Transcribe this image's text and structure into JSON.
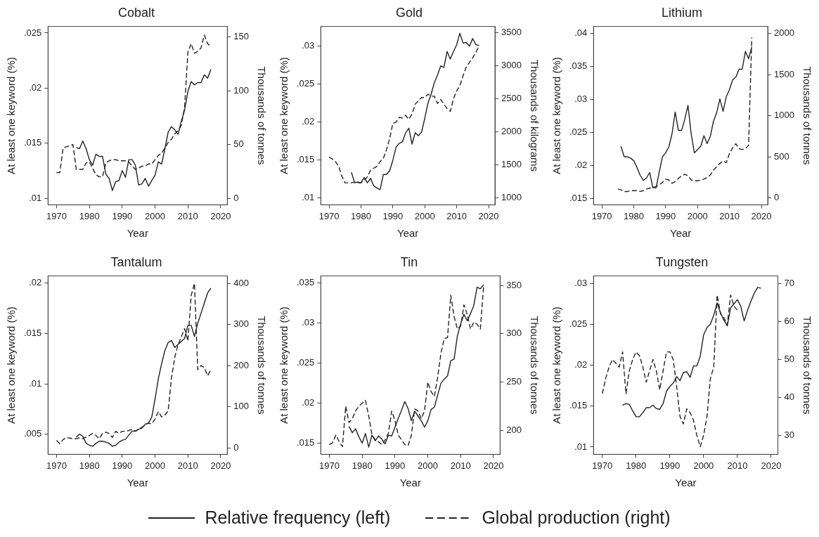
{
  "chart_data": [
    {
      "type": "line",
      "title": "Cobalt",
      "xlabel": "Year",
      "ylabel": "At least one keyword (%)",
      "y2label": "Thousands of tonnes",
      "xlim": [
        1967.4,
        2022
      ],
      "xticks": [
        1970,
        1980,
        1990,
        2000,
        2010,
        2020
      ],
      "ylim": [
        0.0094,
        0.0256
      ],
      "yticks": [
        {
          "value": 0.01,
          "label": ".01"
        },
        {
          "value": 0.015,
          "label": ".015"
        },
        {
          "value": 0.02,
          "label": ".02"
        },
        {
          "value": 0.025,
          "label": ".025"
        }
      ],
      "y2lim": [
        -6,
        160
      ],
      "y2ticks": [
        0,
        50,
        100,
        150
      ],
      "grid": false,
      "marker": "none",
      "legend": "bottom",
      "series": [
        {
          "name": "Relative frequency (left)",
          "color": "#222222",
          "line_style": "solid",
          "x": [
            1976,
            1977,
            1978,
            1979,
            1980,
            1981,
            1982,
            1983,
            1984,
            1985,
            1986,
            1987,
            1988,
            1989,
            1990,
            1991,
            1992,
            1993,
            1994,
            1995,
            1996,
            1997,
            1998,
            1999,
            2000,
            2001,
            2002,
            2003,
            2004,
            2005,
            2006,
            2007,
            2008,
            2009,
            2010,
            2011,
            2012,
            2013,
            2014,
            2015,
            2016,
            2017
          ],
          "values": [
            0.0146,
            0.0145,
            0.0152,
            0.0145,
            0.0135,
            0.013,
            0.014,
            0.0138,
            0.0138,
            0.0122,
            0.0118,
            0.0107,
            0.0115,
            0.0116,
            0.0125,
            0.0119,
            0.0135,
            0.0135,
            0.013,
            0.0112,
            0.0113,
            0.0118,
            0.0111,
            0.0116,
            0.0121,
            0.0133,
            0.0131,
            0.0145,
            0.016,
            0.0165,
            0.0162,
            0.0158,
            0.017,
            0.018,
            0.0197,
            0.0206,
            0.0203,
            0.0205,
            0.0205,
            0.0212,
            0.0209,
            0.0217
          ]
        },
        {
          "name": "Global production (right)",
          "color": "#222222",
          "line_style": "dashed",
          "axis": "y2",
          "x": [
            1970,
            1971,
            1972,
            1973,
            1974,
            1975,
            1976,
            1977,
            1978,
            1979,
            1980,
            1981,
            1982,
            1983,
            1984,
            1985,
            1986,
            1987,
            1988,
            1989,
            1990,
            1991,
            1992,
            1993,
            1994,
            1995,
            1996,
            1997,
            1998,
            1999,
            2000,
            2001,
            2002,
            2003,
            2004,
            2005,
            2006,
            2007,
            2008,
            2009,
            2010,
            2011,
            2012,
            2013,
            2014,
            2015,
            2016,
            2017
          ],
          "values": [
            24,
            24,
            47,
            48,
            49,
            50,
            27,
            27,
            27,
            33,
            34,
            28,
            22,
            20,
            20,
            33,
            35,
            36,
            36,
            35,
            35,
            35,
            34,
            30,
            27,
            28,
            30,
            30,
            32,
            32,
            36,
            40,
            42,
            47,
            52,
            55,
            60,
            63,
            68,
            85,
            136,
            144,
            135,
            137,
            140,
            152,
            144,
            141
          ]
        }
      ]
    },
    {
      "type": "line",
      "title": "Gold",
      "xlabel": "Year",
      "ylabel": "At least one keyword (%)",
      "y2label": "Thousands of kilograms",
      "xlim": [
        1967.4,
        2022
      ],
      "xticks": [
        1970,
        1980,
        1990,
        2000,
        2010,
        2020
      ],
      "ylim": [
        0.0091,
        0.0326
      ],
      "yticks": [
        {
          "value": 0.01,
          "label": ".01"
        },
        {
          "value": 0.015,
          "label": ".015"
        },
        {
          "value": 0.02,
          "label": ".02"
        },
        {
          "value": 0.025,
          "label": ".025"
        },
        {
          "value": 0.03,
          "label": ".03"
        }
      ],
      "y2lim": [
        897,
        3595
      ],
      "y2ticks": [
        1000,
        1500,
        2000,
        2500,
        3000,
        3500
      ],
      "grid": false,
      "marker": "none",
      "series": [
        {
          "color": "#222222",
          "line_style": "solid",
          "x": [
            1977,
            1978,
            1979,
            1980,
            1981,
            1982,
            1983,
            1984,
            1985,
            1986,
            1987,
            1988,
            1989,
            1990,
            1991,
            1992,
            1993,
            1994,
            1995,
            1996,
            1997,
            1998,
            1999,
            2000,
            2001,
            2002,
            2003,
            2004,
            2005,
            2006,
            2007,
            2008,
            2009,
            2010,
            2011,
            2012,
            2013,
            2014,
            2015,
            2016,
            2017
          ],
          "values": [
            0.0134,
            0.012,
            0.0121,
            0.012,
            0.0127,
            0.012,
            0.0126,
            0.0116,
            0.0113,
            0.0111,
            0.0131,
            0.0131,
            0.0136,
            0.015,
            0.0167,
            0.0172,
            0.0174,
            0.0186,
            0.0192,
            0.0171,
            0.0186,
            0.0182,
            0.0187,
            0.0205,
            0.0225,
            0.0237,
            0.0252,
            0.0262,
            0.0274,
            0.0272,
            0.0293,
            0.0283,
            0.0293,
            0.0302,
            0.0317,
            0.0304,
            0.0305,
            0.03,
            0.031,
            0.0302,
            0.0301
          ]
        },
        {
          "color": "#222222",
          "line_style": "dashed",
          "axis": "y2",
          "x": [
            1970,
            1971,
            1972,
            1973,
            1974,
            1975,
            1976,
            1977,
            1978,
            1979,
            1980,
            1981,
            1982,
            1983,
            1984,
            1985,
            1986,
            1987,
            1988,
            1989,
            1990,
            1991,
            1992,
            1993,
            1994,
            1995,
            1996,
            1997,
            1998,
            1999,
            2000,
            2001,
            2002,
            2003,
            2004,
            2005,
            2006,
            2007,
            2008,
            2009,
            2010,
            2011,
            2012,
            2013,
            2014,
            2015,
            2016,
            2017
          ],
          "values": [
            1620,
            1590,
            1550,
            1480,
            1330,
            1230,
            1230,
            1230,
            1240,
            1230,
            1230,
            1270,
            1320,
            1420,
            1450,
            1480,
            1550,
            1600,
            1730,
            1900,
            2130,
            2150,
            2220,
            2210,
            2250,
            2190,
            2270,
            2420,
            2470,
            2520,
            2520,
            2570,
            2540,
            2540,
            2430,
            2490,
            2420,
            2350,
            2310,
            2500,
            2620,
            2700,
            2850,
            2980,
            3050,
            3120,
            3200,
            3300
          ]
        }
      ]
    },
    {
      "type": "line",
      "title": "Lithium",
      "xlabel": "Year",
      "ylabel": "At least one keyword (%)",
      "y2label": "Thousands of tonnes",
      "xlim": [
        1967.4,
        2022
      ],
      "xticks": [
        1970,
        1980,
        1990,
        2000,
        2010,
        2020
      ],
      "ylim": [
        0.014,
        0.0411
      ],
      "yticks": [
        {
          "value": 0.015,
          "label": ".015"
        },
        {
          "value": 0.02,
          "label": ".02"
        },
        {
          "value": 0.025,
          "label": ".025"
        },
        {
          "value": 0.03,
          "label": ".03"
        },
        {
          "value": 0.035,
          "label": ".035"
        },
        {
          "value": 0.04,
          "label": ".04"
        }
      ],
      "y2lim": [
        -82,
        2085
      ],
      "y2ticks": [
        0,
        500,
        1000,
        1500,
        2000
      ],
      "grid": false,
      "marker": "none",
      "series": [
        {
          "color": "#222222",
          "line_style": "solid",
          "x": [
            1976,
            1977,
            1978,
            1979,
            1980,
            1981,
            1982,
            1983,
            1984,
            1985,
            1986,
            1987,
            1988,
            1989,
            1990,
            1991,
            1992,
            1993,
            1994,
            1995,
            1996,
            1997,
            1998,
            1999,
            2000,
            2001,
            2002,
            2003,
            2004,
            2005,
            2006,
            2007,
            2008,
            2009,
            2010,
            2011,
            2012,
            2013,
            2014,
            2015,
            2016,
            2017
          ],
          "values": [
            0.0229,
            0.0213,
            0.0213,
            0.0211,
            0.0207,
            0.0197,
            0.0185,
            0.0177,
            0.0181,
            0.0189,
            0.0166,
            0.0166,
            0.019,
            0.0213,
            0.0219,
            0.0228,
            0.0248,
            0.0281,
            0.0253,
            0.0253,
            0.027,
            0.0291,
            0.0248,
            0.0219,
            0.0224,
            0.0229,
            0.0245,
            0.0233,
            0.0244,
            0.0267,
            0.028,
            0.0301,
            0.0282,
            0.0304,
            0.0315,
            0.033,
            0.0334,
            0.0346,
            0.0346,
            0.0373,
            0.0362,
            0.038
          ]
        },
        {
          "color": "#222222",
          "line_style": "dashed",
          "axis": "y2",
          "x": [
            1975,
            1976,
            1977,
            1978,
            1979,
            1980,
            1981,
            1982,
            1983,
            1984,
            1985,
            1986,
            1987,
            1988,
            1989,
            1990,
            1991,
            1992,
            1993,
            1994,
            1995,
            1996,
            1997,
            1998,
            1999,
            2000,
            2001,
            2002,
            2003,
            2004,
            2005,
            2006,
            2007,
            2008,
            2009,
            2010,
            2011,
            2012,
            2013,
            2014,
            2015,
            2016,
            2017
          ],
          "values": [
            110,
            100,
            80,
            80,
            90,
            90,
            90,
            80,
            90,
            110,
            120,
            130,
            140,
            160,
            190,
            230,
            220,
            180,
            200,
            240,
            270,
            290,
            270,
            220,
            210,
            210,
            220,
            230,
            250,
            280,
            340,
            380,
            420,
            450,
            430,
            540,
            610,
            660,
            600,
            590,
            600,
            640,
            1950
          ]
        }
      ]
    },
    {
      "type": "line",
      "title": "Tantalum",
      "xlabel": "Year",
      "ylabel": "At least one keyword (%)",
      "y2label": "Thousands of tonnes",
      "xlim": [
        1967.4,
        2022
      ],
      "xticks": [
        1970,
        1980,
        1990,
        2000,
        2010,
        2020
      ],
      "ylim": [
        0.003,
        0.0207
      ],
      "yticks": [
        {
          "value": 0.005,
          "label": ".005"
        },
        {
          "value": 0.01,
          "label": ".01"
        },
        {
          "value": 0.015,
          "label": ".015"
        },
        {
          "value": 0.02,
          "label": ".02"
        }
      ],
      "y2lim": [
        -16,
        418
      ],
      "y2ticks": [
        0,
        100,
        200,
        300,
        400
      ],
      "grid": false,
      "marker": "none",
      "series": [
        {
          "color": "#222222",
          "line_style": "solid",
          "x": [
            1976,
            1977,
            1978,
            1979,
            1980,
            1981,
            1982,
            1983,
            1984,
            1985,
            1986,
            1987,
            1988,
            1989,
            1990,
            1991,
            1992,
            1993,
            1994,
            1995,
            1996,
            1997,
            1998,
            1999,
            2000,
            2001,
            2002,
            2003,
            2004,
            2005,
            2006,
            2007,
            2008,
            2009,
            2010,
            2011,
            2012,
            2013,
            2014,
            2015,
            2016,
            2017
          ],
          "values": [
            0.0047,
            0.005,
            0.0048,
            0.0041,
            0.0039,
            0.0038,
            0.0041,
            0.0043,
            0.0043,
            0.0042,
            0.0041,
            0.0038,
            0.0039,
            0.0042,
            0.0044,
            0.0045,
            0.0049,
            0.0053,
            0.0053,
            0.0055,
            0.0056,
            0.006,
            0.0061,
            0.0067,
            0.0085,
            0.0105,
            0.012,
            0.0133,
            0.0141,
            0.0143,
            0.0136,
            0.0139,
            0.0142,
            0.0145,
            0.0158,
            0.0158,
            0.0147,
            0.016,
            0.017,
            0.018,
            0.019,
            0.0195
          ]
        },
        {
          "color": "#222222",
          "line_style": "dashed",
          "axis": "y2",
          "x": [
            1970,
            1971,
            1972,
            1973,
            1975,
            1976,
            1977,
            1978,
            1980,
            1981,
            1982,
            1983,
            1984,
            1985,
            1986,
            1987,
            1988,
            1989,
            1990,
            1991,
            1992,
            1993,
            1994,
            1995,
            1996,
            1997,
            1998,
            1999,
            2000,
            2001,
            2002,
            2003,
            2004,
            2005,
            2006,
            2007,
            2008,
            2009,
            2010,
            2011,
            2012,
            2013,
            2014,
            2015,
            2016,
            2017
          ],
          "values": [
            18,
            10,
            20,
            25,
            22,
            22,
            24,
            22,
            30,
            35,
            30,
            22,
            35,
            38,
            35,
            25,
            40,
            35,
            40,
            40,
            42,
            45,
            40,
            45,
            50,
            55,
            60,
            58,
            70,
            88,
            75,
            80,
            90,
            170,
            220,
            250,
            270,
            290,
            260,
            370,
            400,
            190,
            200,
            195,
            175,
            190
          ]
        }
      ]
    },
    {
      "type": "line",
      "title": "Tin",
      "xlabel": "Year",
      "ylabel": "At least one keyword (%)",
      "y2label": "Thousands of tonnes",
      "xlim": [
        1967.4,
        2022
      ],
      "xticks": [
        1970,
        1980,
        1990,
        2000,
        2010,
        2020
      ],
      "ylim": [
        0.0136,
        0.0359
      ],
      "yticks": [
        {
          "value": 0.015,
          "label": ".015"
        },
        {
          "value": 0.02,
          "label": ".02"
        },
        {
          "value": 0.025,
          "label": ".025"
        },
        {
          "value": 0.03,
          "label": ".03"
        },
        {
          "value": 0.035,
          "label": ".035"
        }
      ],
      "y2lim": [
        175,
        360
      ],
      "y2ticks": [
        200,
        250,
        300,
        350
      ],
      "grid": false,
      "marker": "none",
      "series": [
        {
          "color": "#222222",
          "line_style": "solid",
          "x": [
            1976,
            1977,
            1978,
            1979,
            1980,
            1981,
            1982,
            1983,
            1984,
            1985,
            1986,
            1987,
            1988,
            1989,
            1990,
            1991,
            1992,
            1993,
            1994,
            1995,
            1996,
            1997,
            1998,
            1999,
            2000,
            2001,
            2002,
            2003,
            2004,
            2005,
            2006,
            2007,
            2008,
            2009,
            2010,
            2011,
            2012,
            2013,
            2014,
            2015,
            2016,
            2017
          ],
          "values": [
            0.0171,
            0.0163,
            0.0168,
            0.0158,
            0.015,
            0.0162,
            0.0145,
            0.016,
            0.0153,
            0.0159,
            0.0155,
            0.0149,
            0.016,
            0.0159,
            0.017,
            0.0181,
            0.0191,
            0.0202,
            0.0193,
            0.0178,
            0.019,
            0.0184,
            0.0178,
            0.017,
            0.0178,
            0.0192,
            0.0195,
            0.021,
            0.0225,
            0.023,
            0.0234,
            0.0253,
            0.0255,
            0.0284,
            0.0299,
            0.0311,
            0.0303,
            0.0312,
            0.0322,
            0.0345,
            0.0343,
            0.0348
          ]
        },
        {
          "color": "#222222",
          "line_style": "dashed",
          "axis": "y2",
          "x": [
            1970,
            1971,
            1972,
            1973,
            1974,
            1975,
            1976,
            1977,
            1978,
            1979,
            1980,
            1981,
            1982,
            1983,
            1984,
            1985,
            1986,
            1987,
            1988,
            1989,
            1990,
            1991,
            1992,
            1993,
            1994,
            1995,
            1996,
            1997,
            1998,
            1999,
            2000,
            2001,
            2002,
            2003,
            2004,
            2005,
            2006,
            2007,
            2008,
            2009,
            2010,
            2011,
            2012,
            2013,
            2014,
            2015,
            2016,
            2017
          ],
          "values": [
            185,
            187,
            195,
            188,
            183,
            225,
            208,
            212,
            220,
            225,
            228,
            231,
            215,
            195,
            190,
            188,
            185,
            190,
            197,
            220,
            210,
            195,
            190,
            185,
            184,
            195,
            222,
            220,
            212,
            220,
            250,
            240,
            235,
            255,
            280,
            295,
            296,
            340,
            318,
            305,
            308,
            330,
            320,
            305,
            312,
            310,
            305,
            350
          ]
        }
      ]
    },
    {
      "type": "line",
      "title": "Tungsten",
      "xlabel": "Year",
      "ylabel": "At least one keyword (%)",
      "y2label": "Thousands of tonnes",
      "xlim": [
        1967.4,
        2022
      ],
      "xticks": [
        1970,
        1980,
        1990,
        2000,
        2010,
        2020
      ],
      "ylim": [
        0.0091,
        0.0309
      ],
      "yticks": [
        {
          "value": 0.01,
          "label": ".01"
        },
        {
          "value": 0.015,
          "label": ".015"
        },
        {
          "value": 0.02,
          "label": ".02"
        },
        {
          "value": 0.025,
          "label": ".025"
        },
        {
          "value": 0.03,
          "label": ".03"
        }
      ],
      "y2lim": [
        25,
        72
      ],
      "y2ticks": [
        30,
        40,
        50,
        60,
        70
      ],
      "grid": false,
      "marker": "none",
      "series": [
        {
          "color": "#222222",
          "line_style": "solid",
          "x": [
            1976,
            1977,
            1978,
            1979,
            1980,
            1981,
            1982,
            1983,
            1984,
            1985,
            1986,
            1987,
            1988,
            1989,
            1990,
            1991,
            1992,
            1993,
            1994,
            1995,
            1996,
            1997,
            1998,
            1999,
            2000,
            2001,
            2002,
            2003,
            2004,
            2005,
            2006,
            2007,
            2008,
            2009,
            2010,
            2011,
            2012,
            2013,
            2014,
            2015,
            2016,
            2017
          ],
          "values": [
            0.0151,
            0.0153,
            0.0152,
            0.0144,
            0.0137,
            0.0137,
            0.0142,
            0.0148,
            0.0148,
            0.0151,
            0.0147,
            0.0146,
            0.0153,
            0.0168,
            0.0174,
            0.0178,
            0.0186,
            0.0181,
            0.0191,
            0.0192,
            0.0185,
            0.0199,
            0.0199,
            0.0211,
            0.0237,
            0.0246,
            0.025,
            0.0261,
            0.0276,
            0.0264,
            0.0255,
            0.0248,
            0.027,
            0.0275,
            0.028,
            0.0272,
            0.0254,
            0.0267,
            0.0278,
            0.0288,
            0.0295,
            0.0294
          ]
        },
        {
          "color": "#222222",
          "line_style": "dashed",
          "axis": "y2",
          "x": [
            1970,
            1971,
            1972,
            1973,
            1974,
            1975,
            1976,
            1977,
            1978,
            1979,
            1980,
            1981,
            1982,
            1983,
            1984,
            1985,
            1986,
            1987,
            1988,
            1989,
            1990,
            1991,
            1992,
            1993,
            1994,
            1995,
            1996,
            1997,
            1998,
            1999,
            2000,
            2001,
            2002,
            2003,
            2004,
            2005,
            2006,
            2007,
            2008,
            2009,
            2010
          ],
          "values": [
            41,
            45,
            48,
            50,
            49,
            48,
            52,
            41,
            47,
            50,
            52,
            51,
            48,
            44,
            47,
            50,
            47,
            42,
            47,
            52,
            52,
            50,
            43,
            35,
            33,
            37,
            36,
            34,
            30,
            27,
            30,
            35,
            45,
            48,
            67,
            62,
            61,
            59,
            67,
            64,
            63
          ]
        }
      ]
    }
  ]
}
